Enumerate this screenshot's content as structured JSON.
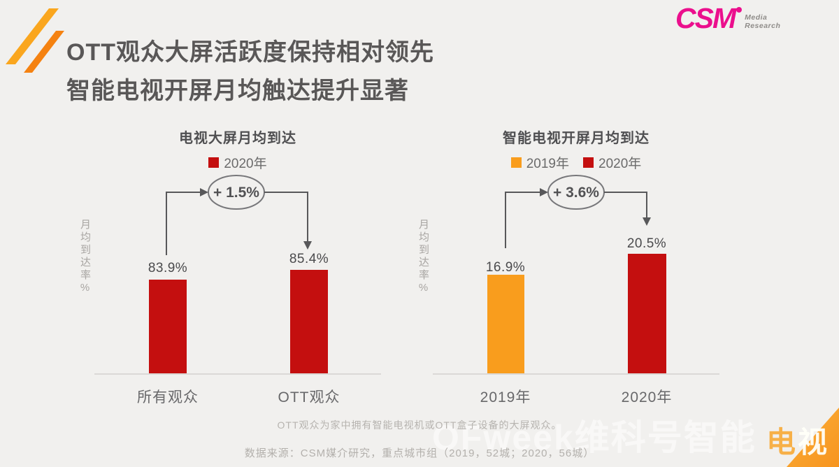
{
  "header": {
    "title_line1": "OTT观众大屏活跃度保持相对领先",
    "title_line2": "智能电视开屏月均触达提升显著"
  },
  "brand": {
    "name": "CSM",
    "sub_line1": "Media",
    "sub_line2": "Research",
    "color": "#eb0f8d"
  },
  "colors": {
    "red": "#c40f0f",
    "orange": "#f99d1d",
    "background": "#f1f0ee"
  },
  "chart_data": [
    {
      "type": "bar",
      "title": "电视大屏月均到达",
      "ylabel": "月均到达率%",
      "legend": [
        {
          "label": "2020年",
          "color": "#c40f0f"
        }
      ],
      "categories": [
        "所有观众",
        "OTT观众"
      ],
      "values": [
        83.9,
        85.4
      ],
      "value_labels": [
        "83.9%",
        "85.4%"
      ],
      "bar_colors": [
        "#c40f0f",
        "#c40f0f"
      ],
      "annotation": "+ 1.5%",
      "ylim": [
        70,
        86
      ],
      "grid": false,
      "legend_position": "top"
    },
    {
      "type": "bar",
      "title": "智能电视开屏月均到达",
      "ylabel": "月均到达率%",
      "legend": [
        {
          "label": "2019年",
          "color": "#f99d1d"
        },
        {
          "label": "2020年",
          "color": "#c40f0f"
        }
      ],
      "categories": [
        "2019年",
        "2020年"
      ],
      "values": [
        16.9,
        20.5
      ],
      "value_labels": [
        "16.9%",
        "20.5%"
      ],
      "bar_colors": [
        "#f99d1d",
        "#c40f0f"
      ],
      "annotation": "+ 3.6%",
      "ylim": [
        0,
        21
      ],
      "grid": false,
      "legend_position": "top"
    }
  ],
  "footer": {
    "note": "OTT观众为家中拥有智能电视机或OTT盒子设备的大屏观众。",
    "source": "数据来源：CSM媒介研究，重点城市组（2019，52城；2020，56城）"
  },
  "watermark": {
    "text": "OFweek维科号智能",
    "corner_left": "电",
    "corner_right": "视"
  }
}
